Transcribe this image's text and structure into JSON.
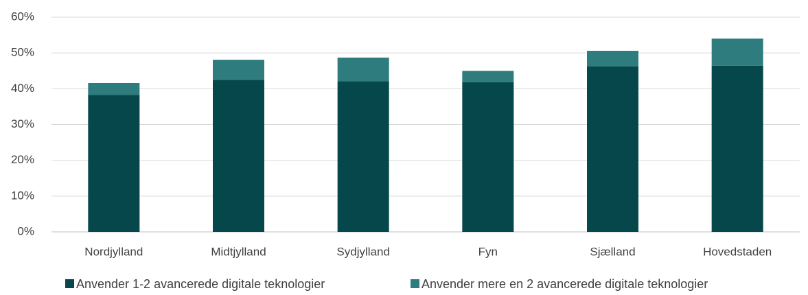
{
  "chart_data": {
    "type": "stacked_bar",
    "categories": [
      "Nordjylland",
      "Midtjylland",
      "Sydjylland",
      "Fyn",
      "Sjælland",
      "Hovedstaden"
    ],
    "series": [
      {
        "name": "Anvender 1-2  avancerede digitale teknologier",
        "color": "#05474a",
        "values": [
          38.3,
          42.5,
          42.1,
          41.8,
          46.2,
          46.4
        ]
      },
      {
        "name": "Anvender mere en 2 avancerede digitale teknologier",
        "color": "#2e7c7e",
        "values": [
          3.3,
          5.6,
          6.6,
          3.2,
          4.4,
          7.6
        ]
      }
    ],
    "ylim": [
      0,
      60
    ],
    "yticks": [
      {
        "value": 0,
        "label": "0%"
      },
      {
        "value": 10,
        "label": "10%"
      },
      {
        "value": 20,
        "label": "20%"
      },
      {
        "value": 30,
        "label": "30%"
      },
      {
        "value": 40,
        "label": "40%"
      },
      {
        "value": 50,
        "label": "50%"
      },
      {
        "value": 60,
        "label": "60%"
      }
    ],
    "grid": true,
    "legend": "bottom"
  }
}
